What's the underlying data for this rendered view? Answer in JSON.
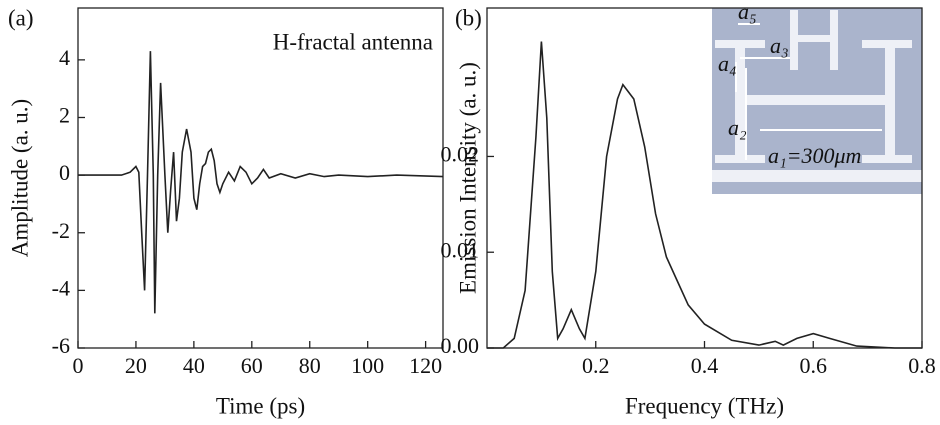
{
  "chart_data": [
    {
      "type": "line",
      "panel_label": "(a)",
      "annotation": "H-fractal antenna",
      "x_label": "Time (ps)",
      "y_label": "Amplitude (a. u.)",
      "color": "#222222",
      "x": [
        0,
        15,
        18,
        20,
        21,
        22,
        23,
        24,
        25,
        26,
        26.5,
        27.5,
        28.5,
        30,
        31,
        32,
        33,
        34,
        35,
        36,
        37.5,
        39,
        40,
        41,
        42,
        43,
        44,
        45,
        46,
        47,
        48,
        49,
        50,
        52,
        54,
        56,
        58,
        60,
        62,
        64,
        66,
        70,
        75,
        80,
        85,
        90,
        100,
        110,
        126
      ],
      "values": [
        0,
        0,
        0.1,
        0.3,
        0.1,
        -2,
        -4,
        0,
        4.3,
        0,
        -4.8,
        0,
        3.2,
        0,
        -2,
        -0.5,
        0.8,
        -1.6,
        -0.8,
        0.8,
        1.6,
        0.8,
        -0.8,
        -1.2,
        -0.3,
        0.3,
        0.4,
        0.8,
        0.9,
        0.5,
        -0.3,
        -0.6,
        -0.3,
        0.1,
        -0.2,
        0.3,
        0.1,
        -0.3,
        -0.1,
        0.2,
        -0.1,
        0.05,
        -0.1,
        0.05,
        -0.05,
        0,
        -0.05,
        0,
        -0.05
      ],
      "xlim": [
        0,
        126
      ],
      "xticks": [
        0,
        20,
        40,
        60,
        80,
        100,
        120
      ],
      "ylim": [
        -6,
        5.8
      ],
      "yticks": [
        -6,
        -4,
        -2,
        0,
        2,
        4
      ]
    },
    {
      "type": "line",
      "panel_label": "(b)",
      "x_label": "Frequency (THz)",
      "y_label": "Emission Intensity (a. u.)",
      "color": "#222222",
      "x": [
        0,
        0.03,
        0.05,
        0.07,
        0.09,
        0.1,
        0.11,
        0.12,
        0.13,
        0.14,
        0.155,
        0.17,
        0.18,
        0.2,
        0.22,
        0.24,
        0.25,
        0.27,
        0.29,
        0.31,
        0.33,
        0.35,
        0.37,
        0.4,
        0.45,
        0.5,
        0.53,
        0.545,
        0.57,
        0.6,
        0.63,
        0.68,
        0.75,
        0.8
      ],
      "values": [
        0,
        0,
        0.001,
        0.006,
        0.022,
        0.032,
        0.024,
        0.008,
        0.001,
        0.002,
        0.004,
        0.002,
        0.001,
        0.008,
        0.02,
        0.026,
        0.0275,
        0.026,
        0.021,
        0.014,
        0.0095,
        0.007,
        0.0045,
        0.0025,
        0.0008,
        0.0003,
        0.0007,
        0.0003,
        0.001,
        0.0015,
        0.001,
        0.0002,
        0,
        0
      ],
      "xlim": [
        0,
        0.8
      ],
      "xticks": [
        0.2,
        0.4,
        0.6,
        0.8
      ],
      "ylim": [
        0,
        0.0355
      ],
      "yticks": [
        {
          "value": 0,
          "label": "0.00"
        },
        0.01,
        0.02
      ],
      "inset_labels": [
        "a₅",
        "a₃",
        "a₄",
        "a₂",
        "a₁=300μm"
      ]
    }
  ]
}
